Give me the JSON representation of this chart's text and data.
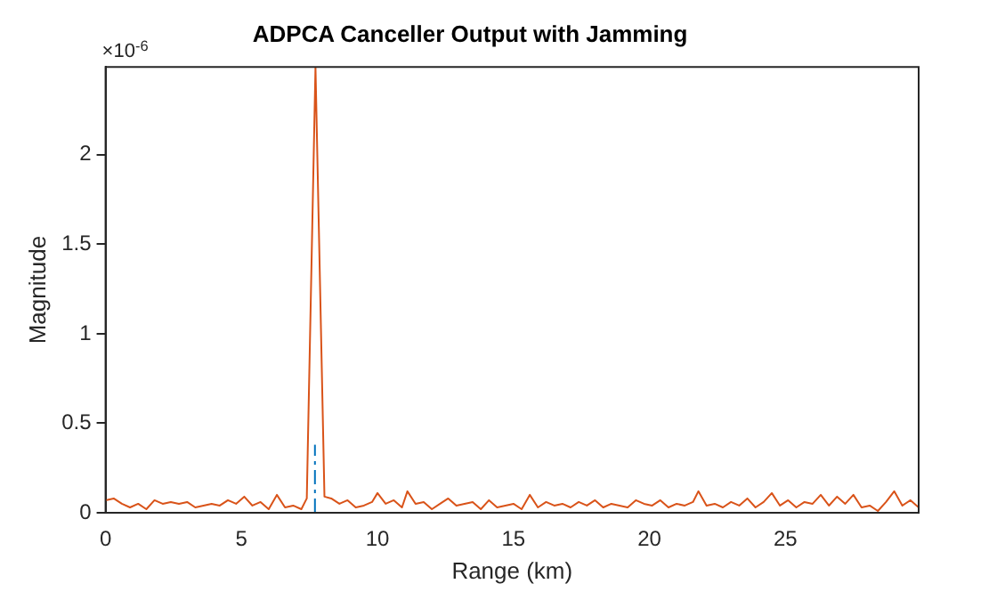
{
  "chart_data": {
    "type": "line",
    "title": "ADPCA Canceller Output with Jamming",
    "xlabel": "Range (km)",
    "ylabel": "Magnitude",
    "annotations": [
      "×10$^{-6}$"
    ],
    "xlim": [
      0,
      29.9
    ],
    "xticks": [
      0,
      5,
      10,
      15,
      20,
      25
    ],
    "ylim": [
      0,
      2.49
    ],
    "yticks": [
      0,
      0.5,
      1,
      1.5,
      2
    ],
    "grid": false,
    "legend": false,
    "marker": "none",
    "series": [
      {
        "color": "#d95319",
        "line_style": "solid",
        "x": [
          0,
          0.3,
          0.6,
          0.9,
          1.2,
          1.5,
          1.8,
          2.1,
          2.4,
          2.7,
          3.0,
          3.3,
          3.6,
          3.9,
          4.2,
          4.5,
          4.8,
          5.1,
          5.4,
          5.7,
          6.0,
          6.3,
          6.6,
          6.9,
          7.2,
          7.4,
          7.72,
          8.05,
          8.3,
          8.6,
          8.9,
          9.2,
          9.5,
          9.8,
          10.0,
          10.3,
          10.6,
          10.9,
          11.1,
          11.4,
          11.7,
          12.0,
          12.3,
          12.6,
          12.9,
          13.2,
          13.5,
          13.8,
          14.1,
          14.4,
          14.7,
          15.0,
          15.3,
          15.6,
          15.9,
          16.2,
          16.5,
          16.8,
          17.1,
          17.4,
          17.7,
          18.0,
          18.3,
          18.6,
          18.9,
          19.2,
          19.5,
          19.8,
          20.1,
          20.4,
          20.7,
          21.0,
          21.3,
          21.6,
          21.8,
          22.1,
          22.4,
          22.7,
          23.0,
          23.3,
          23.6,
          23.9,
          24.2,
          24.5,
          24.8,
          25.1,
          25.4,
          25.7,
          26.0,
          26.3,
          26.6,
          26.9,
          27.2,
          27.5,
          27.8,
          28.1,
          28.4,
          28.7,
          29.0,
          29.3,
          29.6,
          29.9
        ],
        "values": [
          0.07,
          0.08,
          0.05,
          0.03,
          0.05,
          0.02,
          0.07,
          0.05,
          0.06,
          0.05,
          0.06,
          0.03,
          0.04,
          0.05,
          0.04,
          0.07,
          0.05,
          0.09,
          0.04,
          0.06,
          0.02,
          0.1,
          0.03,
          0.04,
          0.02,
          0.08,
          2.49,
          0.09,
          0.08,
          0.05,
          0.07,
          0.03,
          0.04,
          0.06,
          0.11,
          0.05,
          0.07,
          0.03,
          0.12,
          0.05,
          0.06,
          0.02,
          0.05,
          0.08,
          0.04,
          0.05,
          0.06,
          0.02,
          0.07,
          0.03,
          0.04,
          0.05,
          0.02,
          0.1,
          0.03,
          0.06,
          0.04,
          0.05,
          0.03,
          0.06,
          0.04,
          0.07,
          0.03,
          0.05,
          0.04,
          0.03,
          0.07,
          0.05,
          0.04,
          0.07,
          0.03,
          0.05,
          0.04,
          0.06,
          0.12,
          0.04,
          0.05,
          0.03,
          0.06,
          0.04,
          0.08,
          0.03,
          0.06,
          0.11,
          0.04,
          0.07,
          0.03,
          0.06,
          0.05,
          0.1,
          0.04,
          0.09,
          0.05,
          0.1,
          0.03,
          0.04,
          0.01,
          0.06,
          0.12,
          0.04,
          0.07,
          0.03
        ]
      },
      {
        "color": "#0072bd",
        "line_style": "dashed",
        "x": [
          7.7,
          7.7
        ],
        "values": [
          0,
          0.38
        ]
      }
    ]
  }
}
